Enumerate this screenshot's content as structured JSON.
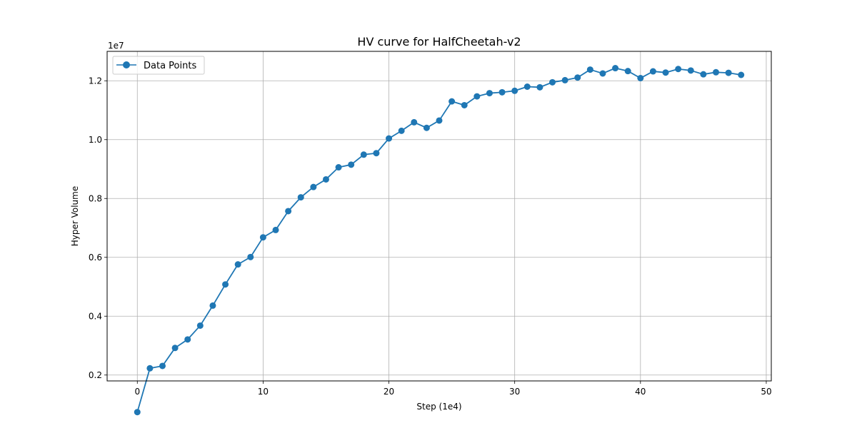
{
  "chart_data": {
    "type": "line",
    "title": "HV curve for HalfCheetah-v2",
    "xlabel": "Step (1e4)",
    "ylabel": "Hyper Volume",
    "y_scale_note": "1e7",
    "xlim": [
      -2.4,
      50.4
    ],
    "ylim": [
      0.18,
      1.3
    ],
    "x_ticks": [
      0,
      10,
      20,
      30,
      40,
      50
    ],
    "y_ticks": [
      0.2,
      0.4,
      0.6,
      0.8,
      1.0,
      1.2
    ],
    "x_tick_labels": [
      "0",
      "10",
      "20",
      "30",
      "40",
      "50"
    ],
    "y_tick_labels": [
      "0.2",
      "0.4",
      "0.6",
      "0.8",
      "1.0",
      "1.2"
    ],
    "grid": true,
    "legend_position": "upper-left",
    "series": [
      {
        "name": "Data Points",
        "color": "#1f77b4",
        "marker": "circle",
        "x": [
          0,
          1,
          2,
          3,
          4,
          5,
          6,
          7,
          8,
          9,
          10,
          11,
          12,
          13,
          14,
          15,
          16,
          17,
          18,
          19,
          20,
          21,
          22,
          23,
          24,
          25,
          26,
          27,
          28,
          29,
          30,
          31,
          32,
          33,
          34,
          35,
          36,
          37,
          38,
          39,
          40,
          41,
          42,
          43,
          44,
          45,
          46,
          47,
          48
        ],
        "y": [
          0.074,
          0.223,
          0.231,
          0.292,
          0.321,
          0.368,
          0.436,
          0.508,
          0.576,
          0.601,
          0.668,
          0.693,
          0.757,
          0.804,
          0.839,
          0.865,
          0.906,
          0.915,
          0.949,
          0.954,
          1.004,
          1.03,
          1.059,
          1.04,
          1.065,
          1.13,
          1.117,
          1.147,
          1.158,
          1.161,
          1.166,
          1.18,
          1.178,
          1.195,
          1.202,
          1.211,
          1.238,
          1.225,
          1.243,
          1.233,
          1.209,
          1.232,
          1.228,
          1.24,
          1.235,
          1.222,
          1.229,
          1.227,
          1.22
        ]
      }
    ]
  }
}
